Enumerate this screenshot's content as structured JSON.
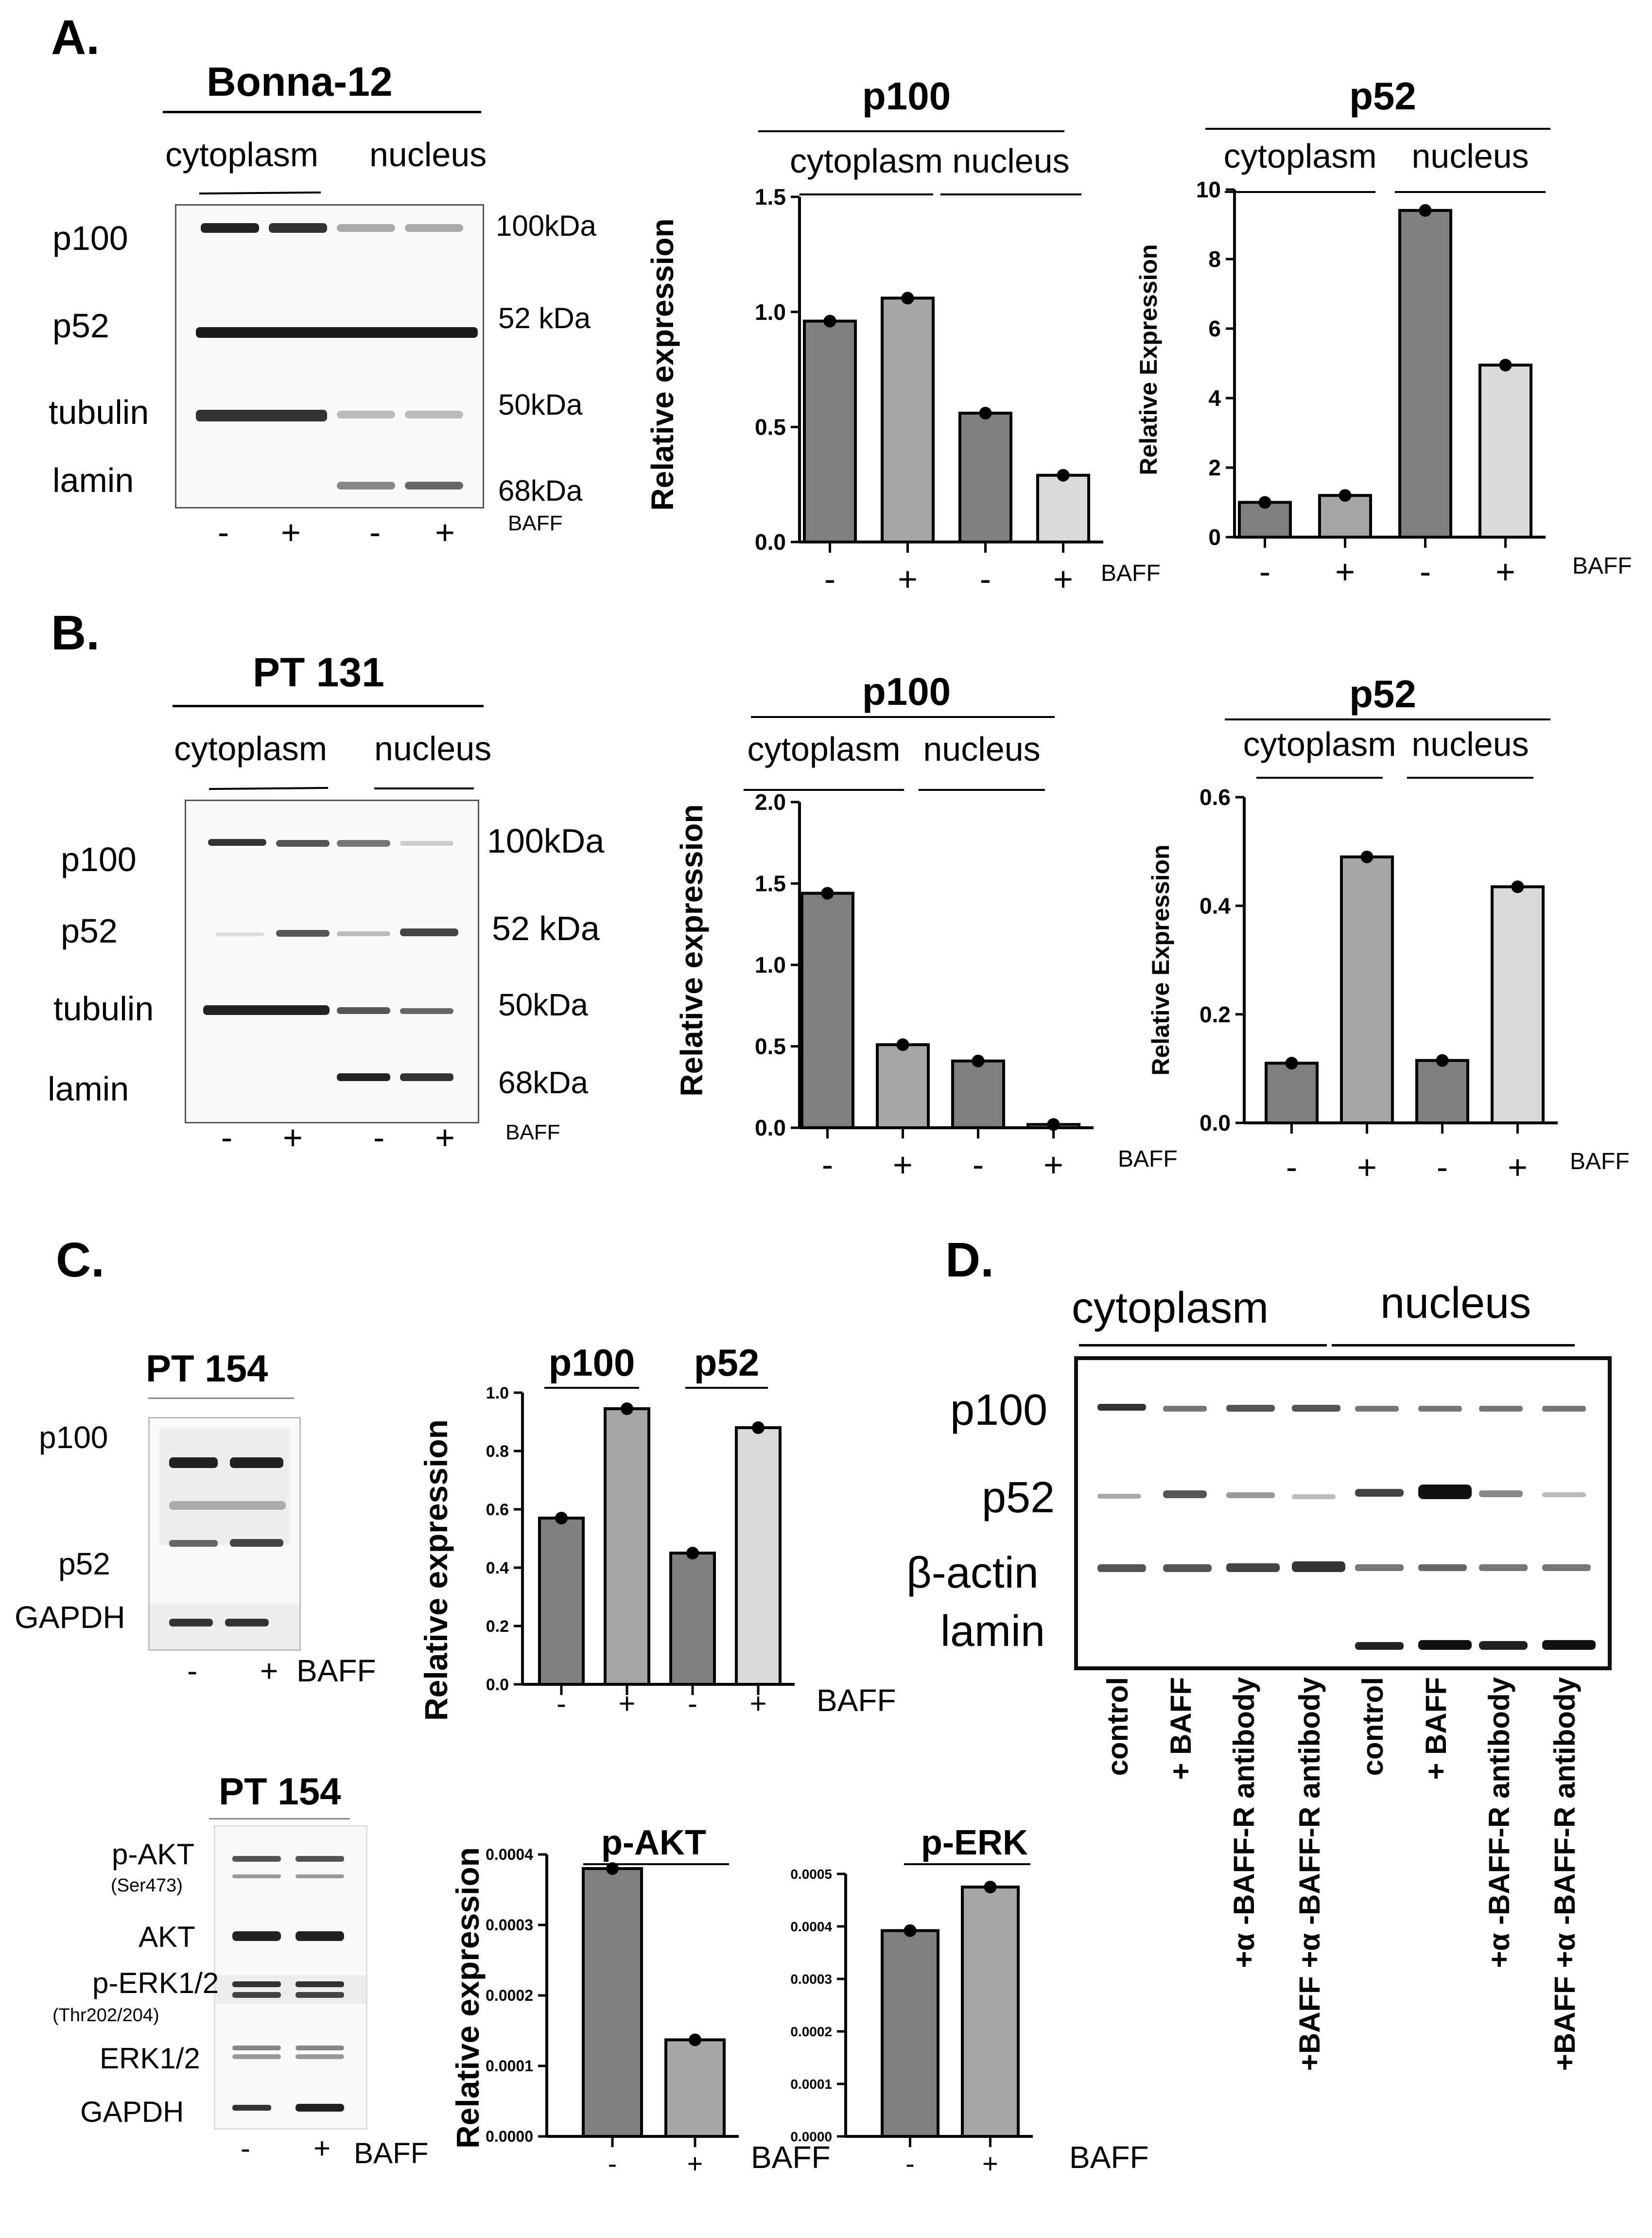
{
  "panels": {
    "A": {
      "letter": "A.",
      "blot": {
        "title": "Bonna-12",
        "compartments": [
          "cytoplasm",
          "nucleus"
        ],
        "rows": [
          "p100",
          "p52",
          "tubulin",
          "lamin"
        ],
        "sizes": [
          "100kDa",
          "52 kDa",
          "50kDa",
          "68kDa"
        ],
        "treatment": [
          "-",
          "+",
          "-",
          "+"
        ],
        "treatment_label": "BAFF"
      }
    },
    "B": {
      "letter": "B.",
      "blot": {
        "title": "PT 131",
        "compartments": [
          "cytoplasm",
          "nucleus"
        ],
        "rows": [
          "p100",
          "p52",
          "tubulin",
          "lamin"
        ],
        "sizes": [
          "100kDa",
          "52 kDa",
          "50kDa",
          "68kDa"
        ],
        "treatment": [
          "-",
          "+",
          "-",
          "+"
        ],
        "treatment_label": "BAFF"
      }
    },
    "C": {
      "letter": "C.",
      "blot1": {
        "title": "PT 154",
        "rows": [
          "p100",
          "p52",
          "GAPDH"
        ],
        "treatment": [
          "-",
          "+"
        ],
        "treatment_label": "BAFF"
      },
      "blot2": {
        "title": "PT 154",
        "rows": [
          "p-AKT",
          "(Ser473)",
          "AKT",
          "p-ERK1/2",
          "(Thr202/204)",
          "ERK1/2",
          "GAPDH"
        ],
        "treatment": [
          "-",
          "+"
        ],
        "treatment_label": "BAFF"
      }
    },
    "D": {
      "letter": "D.",
      "compartments": [
        "cytoplasm",
        "nucleus"
      ],
      "rows": [
        "p100",
        "p52",
        "β-actin",
        "lamin"
      ],
      "lanes": [
        "control",
        "+ BAFF",
        "+α -BAFF-R antibody",
        "+BAFF +α -BAFF-R antibody",
        "control",
        "+ BAFF",
        "+α -BAFF-R antibody",
        "+BAFF +α -BAFF-R antibody"
      ]
    }
  },
  "chart_data": [
    {
      "id": "A-p100",
      "type": "bar",
      "title": "p100",
      "groups": [
        "cytoplasm",
        "nucleus"
      ],
      "categories": [
        "-",
        "+",
        "-",
        "+"
      ],
      "values": [
        0.96,
        1.06,
        0.56,
        0.29
      ],
      "ylabel": "Relative expression",
      "ylim": [
        0,
        1.5
      ],
      "yticks": [
        "0.0",
        "0.5",
        "1.0",
        "1.5"
      ],
      "xlabel": "BAFF",
      "colors": [
        "#7f7f7f",
        "#a6a6a6",
        "#7f7f7f",
        "#d9d9d9"
      ]
    },
    {
      "id": "A-p52",
      "type": "bar",
      "title": "p52",
      "groups": [
        "cytoplasm",
        "nucleus"
      ],
      "categories": [
        "-",
        "+",
        "-",
        "+"
      ],
      "values": [
        1.0,
        1.2,
        9.4,
        4.95
      ],
      "ylabel": "Relative Expression",
      "ylim": [
        0,
        10
      ],
      "yticks": [
        "0",
        "2",
        "4",
        "6",
        "8",
        "10"
      ],
      "xlabel": "BAFF",
      "colors": [
        "#7f7f7f",
        "#a6a6a6",
        "#7f7f7f",
        "#d9d9d9"
      ]
    },
    {
      "id": "B-p100",
      "type": "bar",
      "title": "p100",
      "groups": [
        "cytoplasm",
        "nucleus"
      ],
      "categories": [
        "-",
        "+",
        "-",
        "+"
      ],
      "values": [
        1.44,
        0.51,
        0.41,
        0.02
      ],
      "ylabel": "Relative expression",
      "ylim": [
        0,
        2.0
      ],
      "yticks": [
        "0.0",
        "0.5",
        "1.0",
        "1.5",
        "2.0"
      ],
      "xlabel": "BAFF",
      "colors": [
        "#7f7f7f",
        "#a6a6a6",
        "#7f7f7f",
        "#d9d9d9"
      ]
    },
    {
      "id": "B-p52",
      "type": "bar",
      "title": "p52",
      "groups": [
        "cytoplasm",
        "nucleus"
      ],
      "categories": [
        "-",
        "+",
        "-",
        "+"
      ],
      "values": [
        0.11,
        0.49,
        0.115,
        0.435
      ],
      "ylabel": "Relative Expression",
      "ylim": [
        0,
        0.6
      ],
      "yticks": [
        "0.0",
        "0.2",
        "0.4",
        "0.6"
      ],
      "xlabel": "BAFF",
      "colors": [
        "#7f7f7f",
        "#a6a6a6",
        "#7f7f7f",
        "#d9d9d9"
      ]
    },
    {
      "id": "C-p100-p52",
      "type": "bar",
      "title": "",
      "groups": [
        "p100",
        "p52"
      ],
      "categories": [
        "-",
        "+",
        "-",
        "+"
      ],
      "values": [
        0.57,
        0.945,
        0.45,
        0.88
      ],
      "ylabel": "Relative expression",
      "ylim": [
        0,
        1.0
      ],
      "yticks": [
        "0.0",
        "0.2",
        "0.4",
        "0.6",
        "0.8",
        "1.0"
      ],
      "xlabel": "BAFF",
      "colors": [
        "#7f7f7f",
        "#a6a6a6",
        "#7f7f7f",
        "#d9d9d9"
      ]
    },
    {
      "id": "C-pAKT",
      "type": "bar",
      "title": "p-AKT",
      "groups": [],
      "categories": [
        "-",
        "+"
      ],
      "values": [
        0.00038,
        0.000137
      ],
      "ylabel": "Relative expression",
      "ylim": [
        0,
        0.0004
      ],
      "yticks": [
        "0.0000",
        "0.0001",
        "0.0002",
        "0.0003",
        "0.0004"
      ],
      "xlabel": "BAFF",
      "colors": [
        "#7f7f7f",
        "#a6a6a6"
      ]
    },
    {
      "id": "C-pERK",
      "type": "bar",
      "title": "p-ERK",
      "groups": [],
      "categories": [
        "-",
        "+"
      ],
      "values": [
        0.000392,
        0.000475
      ],
      "ylabel": "",
      "ylim": [
        0,
        0.0005
      ],
      "yticks": [
        "0.0000",
        "0.0001",
        "0.0002",
        "0.0003",
        "0.0004",
        "0.0005"
      ],
      "xlabel": "BAFF",
      "colors": [
        "#7f7f7f",
        "#a6a6a6"
      ]
    }
  ]
}
